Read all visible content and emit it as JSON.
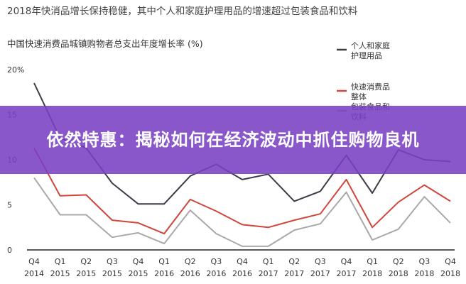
{
  "headline": "2018年快消品增长保持稳健，其中个人和家庭护理用品的增速超过包装食品和饮料",
  "banner": "依然特惠：揭秘如何在经济波动中抓住购物良机",
  "colors": {
    "personal_home_care": "#3a3d46",
    "fmcg_overall": "#d1453b",
    "packaged_food_beverage": "#a9a9a9",
    "banner": "#7a40c4"
  },
  "chart_data": {
    "type": "line",
    "title": "中国快速消费品城镇购物者总支出年度增长率 (%)",
    "xlabel": "",
    "ylabel": "",
    "ylim": [
      0,
      20
    ],
    "yticks": [
      0,
      5,
      10,
      15,
      20
    ],
    "ytick_labels": [
      "0",
      "5",
      "10",
      "15",
      "20%"
    ],
    "categories": [
      "Q4 2014",
      "Q1 2015",
      "Q2 2015",
      "Q3 2015",
      "Q4 2015",
      "Q1 2016",
      "Q2 2016",
      "Q3 2016",
      "Q4 2016",
      "Q1 2017",
      "Q2 2017",
      "Q3 2017",
      "Q4 2017",
      "Q1 2018",
      "Q2 2018",
      "Q3 2018",
      "Q4 2018"
    ],
    "category_lines": [
      [
        "Q4",
        "2014"
      ],
      [
        "Q1",
        "2015"
      ],
      [
        "Q2",
        "2015"
      ],
      [
        "Q3",
        "2015"
      ],
      [
        "Q4",
        "2015"
      ],
      [
        "Q1",
        "2016"
      ],
      [
        "Q2",
        "2016"
      ],
      [
        "Q3",
        "2016"
      ],
      [
        "Q4",
        "2016"
      ],
      [
        "Q1",
        "2017"
      ],
      [
        "Q2",
        "2017"
      ],
      [
        "Q3",
        "2017"
      ],
      [
        "Q4",
        "2017"
      ],
      [
        "Q1",
        "2018"
      ],
      [
        "Q2",
        "2018"
      ],
      [
        "Q3",
        "2018"
      ],
      [
        "Q4",
        "2018"
      ]
    ],
    "series": [
      {
        "name": "个人和家庭护理用品",
        "legend_lines": [
          "个人和家庭",
          "护理用品"
        ],
        "color": "#3a3d46",
        "values": [
          18.5,
          12.4,
          11.3,
          7.4,
          5.1,
          5.1,
          8.2,
          9.5,
          7.8,
          8.4,
          5.4,
          6.5,
          10.5,
          6.3,
          11.1,
          10.0,
          9.8
        ]
      },
      {
        "name": "快速消费品整体",
        "legend_lines": [
          "快速消费品",
          "整体"
        ],
        "color": "#d1453b",
        "values": [
          11.3,
          6.0,
          6.1,
          3.3,
          3.0,
          1.8,
          5.6,
          4.3,
          2.8,
          2.5,
          3.3,
          4.0,
          7.8,
          2.5,
          5.3,
          7.2,
          5.4
        ]
      },
      {
        "name": "包装食品和饮料",
        "legend_lines": [
          "包装食品和",
          "饮料"
        ],
        "color": "#a9a9a9",
        "values": [
          8.0,
          3.9,
          3.9,
          1.4,
          1.9,
          0.7,
          4.4,
          1.8,
          0.4,
          0.4,
          2.2,
          2.9,
          6.4,
          1.1,
          2.3,
          5.9,
          3.0
        ]
      }
    ],
    "grid": false,
    "legend_position": "right"
  }
}
